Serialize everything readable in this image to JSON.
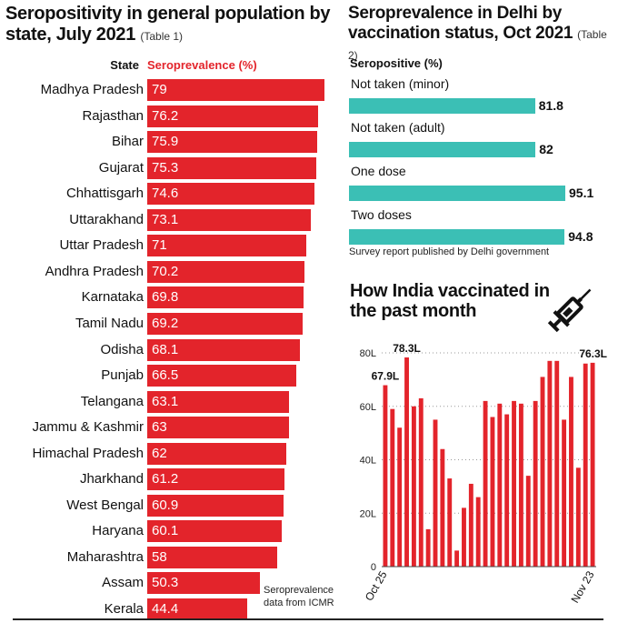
{
  "table1": {
    "title": "Seropositivity in general population by state, July 2021",
    "tag": "(Table 1)",
    "state_header": "State",
    "value_header": "Seroprevalence (%)",
    "note_line1": "Seroprevalence",
    "note_line2": "data from ICMR"
  },
  "table2": {
    "title": "Seroprevalence in Delhi by vaccination status, Oct 2021",
    "tag": "(Table 2)",
    "subheader": "Seropositive (%)",
    "note": "Survey report published by Delhi government"
  },
  "table3": {
    "title": "How India vaccinated in the past month",
    "icon": "syringe-icon"
  },
  "colors": {
    "red": "#e3242b",
    "teal": "#3bbfb5"
  },
  "chart_data": [
    {
      "type": "bar",
      "orientation": "horizontal",
      "title": "Seropositivity in general population by state, July 2021",
      "xlabel": "Seroprevalence (%)",
      "ylabel": "State",
      "categories": [
        "Madhya Pradesh",
        "Rajasthan",
        "Bihar",
        "Gujarat",
        "Chhattisgarh",
        "Uttarakhand",
        "Uttar Pradesh",
        "Andhra Pradesh",
        "Karnataka",
        "Tamil Nadu",
        "Odisha",
        "Punjab",
        "Telangana",
        "Jammu & Kashmir",
        "Himachal Pradesh",
        "Jharkhand",
        "West Bengal",
        "Haryana",
        "Maharashtra",
        "Assam",
        "Kerala"
      ],
      "values": [
        79,
        76.2,
        75.9,
        75.3,
        74.6,
        73.1,
        71,
        70.2,
        69.8,
        69.2,
        68.1,
        66.5,
        63.1,
        63,
        62,
        61.2,
        60.9,
        60.1,
        58,
        50.3,
        44.4
      ],
      "value_labels": [
        "79",
        "76.2",
        "75.9",
        "75.3",
        "74.6",
        "73.1",
        "71",
        "70.2",
        "69.8",
        "69.2",
        "68.1",
        "66.5",
        "63.1",
        "63",
        "62",
        "61.2",
        "60.9",
        "60.1",
        "58",
        "50.3",
        "44.4"
      ]
    },
    {
      "type": "bar",
      "orientation": "horizontal",
      "title": "Seroprevalence in Delhi by vaccination status, Oct 2021",
      "xlabel": "Seropositive (%)",
      "categories": [
        "Not taken (minor)",
        "Not taken (adult)",
        "One dose",
        "Two doses"
      ],
      "values": [
        81.8,
        82,
        95.1,
        94.8
      ],
      "value_labels": [
        "81.8",
        "82",
        "95.1",
        "94.8"
      ]
    },
    {
      "type": "bar",
      "title": "How India vaccinated in the past month",
      "xlabel": "",
      "ylabel": "",
      "ylim": [
        0,
        80
      ],
      "yticks": [
        0,
        20,
        40,
        60,
        80
      ],
      "ytick_labels": [
        "0",
        "20L",
        "40L",
        "60L",
        "80L"
      ],
      "x_start_label": "Oct 25",
      "x_end_label": "Nov 23",
      "values": [
        67.9,
        59,
        52,
        78.3,
        60,
        63,
        14,
        55,
        44,
        33,
        6,
        22,
        31,
        26,
        62,
        56,
        61,
        57,
        62,
        61,
        34,
        62,
        71,
        77,
        77,
        55,
        71,
        37,
        76,
        76.3
      ],
      "annotations": [
        {
          "index": 0,
          "text": "67.9L"
        },
        {
          "index": 3,
          "text": "78.3L"
        },
        {
          "index": 29,
          "text": "76.3L"
        }
      ],
      "grid": "horizontal dotted"
    }
  ]
}
